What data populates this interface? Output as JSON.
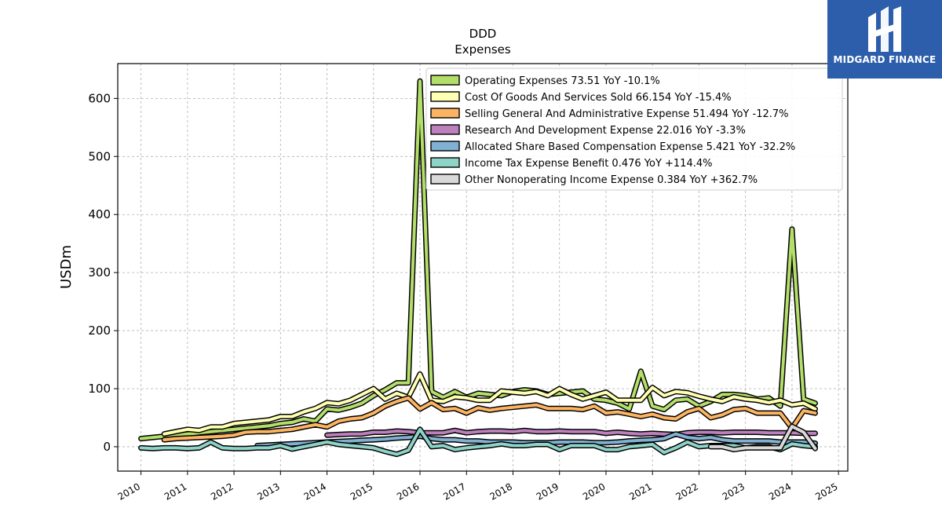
{
  "brand": {
    "name": "MIDGARD FINANCE",
    "background": "#2c5eab"
  },
  "chart_data": {
    "type": "line",
    "title": "DDD",
    "subtitle": "Expenses",
    "ylabel": "USDm",
    "xlabel": "",
    "xlim": [
      2009.5,
      2025.2
    ],
    "ylim": [
      -42,
      660
    ],
    "grid": true,
    "legend_position": "top-right",
    "x_ticks": [
      2010,
      2011,
      2012,
      2013,
      2014,
      2015,
      2016,
      2017,
      2018,
      2019,
      2020,
      2021,
      2022,
      2023,
      2024,
      2025
    ],
    "y_ticks": [
      0,
      100,
      200,
      300,
      400,
      500,
      600
    ],
    "series": [
      {
        "name": "Operating Expenses",
        "legend": "Operating Expenses  73.51 YoY -10.1%",
        "color": "#b3de69",
        "x": [
          2010.0,
          2010.25,
          2010.5,
          2010.75,
          2011.0,
          2011.25,
          2011.5,
          2011.75,
          2012.0,
          2012.25,
          2012.5,
          2012.75,
          2013.0,
          2013.25,
          2013.5,
          2013.75,
          2014.0,
          2014.25,
          2014.5,
          2014.75,
          2015.0,
          2015.25,
          2015.5,
          2015.75,
          2016.0,
          2016.25,
          2016.5,
          2016.75,
          2017.0,
          2017.25,
          2017.5,
          2017.75,
          2018.0,
          2018.25,
          2018.5,
          2018.75,
          2019.0,
          2019.25,
          2019.5,
          2019.75,
          2020.0,
          2020.25,
          2020.5,
          2020.75,
          2021.0,
          2021.25,
          2021.5,
          2021.75,
          2022.0,
          2022.25,
          2022.5,
          2022.75,
          2023.0,
          2023.25,
          2023.5,
          2023.75,
          2024.0,
          2024.25,
          2024.5
        ],
        "y": [
          14,
          16,
          18,
          20,
          22,
          24,
          26,
          28,
          30,
          32,
          34,
          36,
          40,
          42,
          48,
          44,
          65,
          63,
          68,
          75,
          88,
          98,
          110,
          110,
          630,
          95,
          85,
          95,
          85,
          92,
          90,
          88,
          95,
          98,
          96,
          90,
          92,
          94,
          96,
          82,
          80,
          75,
          65,
          130,
          70,
          64,
          80,
          82,
          70,
          78,
          90,
          90,
          88,
          82,
          84,
          70,
          375,
          82,
          75
        ]
      },
      {
        "name": "Cost Of Goods And Services Sold",
        "legend": "Cost Of Goods And Services Sold  66.154 YoY -15.4%",
        "color": "#ffffb3",
        "x": [
          2010.5,
          2010.75,
          2011.0,
          2011.25,
          2011.5,
          2011.75,
          2012.0,
          2012.25,
          2012.5,
          2012.75,
          2013.0,
          2013.25,
          2013.5,
          2013.75,
          2014.0,
          2014.25,
          2014.5,
          2014.75,
          2015.0,
          2015.25,
          2015.5,
          2015.75,
          2016.0,
          2016.25,
          2016.5,
          2016.75,
          2017.0,
          2017.25,
          2017.5,
          2017.75,
          2018.0,
          2018.25,
          2018.5,
          2018.75,
          2019.0,
          2019.25,
          2019.5,
          2019.75,
          2020.0,
          2020.25,
          2020.5,
          2020.75,
          2021.0,
          2021.25,
          2021.5,
          2021.75,
          2022.0,
          2022.25,
          2022.5,
          2022.75,
          2023.0,
          2023.25,
          2023.5,
          2023.75,
          2024.0,
          2024.25,
          2024.5
        ],
        "y": [
          22,
          26,
          30,
          28,
          34,
          34,
          40,
          42,
          44,
          46,
          52,
          52,
          60,
          66,
          76,
          74,
          80,
          90,
          100,
          82,
          92,
          85,
          125,
          80,
          78,
          86,
          84,
          80,
          80,
          96,
          94,
          92,
          95,
          88,
          100,
          90,
          82,
          88,
          94,
          80,
          80,
          80,
          102,
          88,
          95,
          93,
          87,
          82,
          78,
          86,
          82,
          80,
          76,
          80,
          72,
          75,
          65
        ]
      },
      {
        "name": "Selling General And Administrative Expense",
        "legend": "Selling General And Administrative Expense  51.494 YoY -12.7%",
        "color": "#fdb462",
        "x": [
          2010.5,
          2010.75,
          2011.0,
          2011.25,
          2011.5,
          2011.75,
          2012.0,
          2012.25,
          2012.5,
          2012.75,
          2013.0,
          2013.25,
          2013.5,
          2013.75,
          2014.0,
          2014.25,
          2014.5,
          2014.75,
          2015.0,
          2015.25,
          2015.5,
          2015.75,
          2016.0,
          2016.25,
          2016.5,
          2016.75,
          2017.0,
          2017.25,
          2017.5,
          2017.75,
          2018.0,
          2018.25,
          2018.5,
          2018.75,
          2019.0,
          2019.25,
          2019.5,
          2019.75,
          2020.0,
          2020.25,
          2020.5,
          2020.75,
          2021.0,
          2021.25,
          2021.5,
          2021.75,
          2022.0,
          2022.25,
          2022.5,
          2022.75,
          2023.0,
          2023.25,
          2023.5,
          2023.75,
          2024.0,
          2024.25,
          2024.5
        ],
        "y": [
          12,
          14,
          15,
          16,
          17,
          18,
          20,
          25,
          26,
          26,
          28,
          30,
          34,
          38,
          34,
          44,
          48,
          50,
          58,
          70,
          78,
          84,
          65,
          76,
          64,
          66,
          58,
          67,
          63,
          66,
          68,
          70,
          72,
          66,
          66,
          66,
          64,
          70,
          58,
          60,
          56,
          52,
          56,
          50,
          48,
          60,
          66,
          50,
          55,
          64,
          66,
          58,
          58,
          58,
          32,
          62,
          58
        ]
      },
      {
        "name": "Research And Development Expense",
        "legend": "Research And Development Expense  22.016 YoY -3.3%",
        "color": "#bc80bd",
        "x": [
          2014.0,
          2014.25,
          2014.5,
          2014.75,
          2015.0,
          2015.25,
          2015.5,
          2015.75,
          2016.0,
          2016.25,
          2016.5,
          2016.75,
          2017.0,
          2017.25,
          2017.5,
          2017.75,
          2018.0,
          2018.25,
          2018.5,
          2018.75,
          2019.0,
          2019.25,
          2019.5,
          2019.75,
          2020.0,
          2020.25,
          2020.5,
          2020.75,
          2021.0,
          2021.25,
          2021.5,
          2021.75,
          2022.0,
          2022.25,
          2022.5,
          2022.75,
          2023.0,
          2023.25,
          2023.5,
          2023.75,
          2024.0,
          2024.25,
          2024.5
        ],
        "y": [
          20,
          21,
          22,
          22,
          25,
          25,
          27,
          26,
          24,
          24,
          24,
          28,
          24,
          26,
          27,
          27,
          26,
          28,
          26,
          26,
          27,
          26,
          26,
          26,
          23,
          25,
          23,
          22,
          23,
          22,
          21,
          24,
          25,
          25,
          24,
          25,
          25,
          25,
          24,
          24,
          24,
          23,
          23
        ]
      },
      {
        "name": "Allocated Share Based Compensation Expense",
        "legend": "Allocated Share Based Compensation Expense  5.421 YoY -32.2%",
        "color": "#80b1d3",
        "x": [
          2012.5,
          2012.75,
          2013.0,
          2013.25,
          2013.5,
          2013.75,
          2014.0,
          2014.25,
          2014.5,
          2014.75,
          2015.0,
          2015.25,
          2015.5,
          2015.75,
          2016.0,
          2016.25,
          2016.5,
          2016.75,
          2017.0,
          2017.25,
          2017.5,
          2017.75,
          2018.0,
          2018.25,
          2018.5,
          2018.75,
          2019.0,
          2019.25,
          2019.5,
          2019.75,
          2020.0,
          2020.25,
          2020.5,
          2020.75,
          2021.0,
          2021.25,
          2021.5,
          2021.75,
          2022.0,
          2022.25,
          2022.5,
          2022.75,
          2023.0,
          2023.25,
          2023.5,
          2023.75,
          2024.0,
          2024.25,
          2024.5
        ],
        "y": [
          2,
          3,
          4,
          5,
          6,
          7,
          8,
          9,
          10,
          11,
          12,
          13,
          15,
          16,
          18,
          14,
          12,
          12,
          10,
          10,
          8,
          8,
          8,
          7,
          7,
          7,
          8,
          8,
          8,
          7,
          7,
          8,
          10,
          11,
          12,
          14,
          22,
          16,
          14,
          16,
          12,
          10,
          10,
          10,
          10,
          8,
          8,
          8,
          6
        ]
      },
      {
        "name": "Income Tax Expense Benefit",
        "legend": "Income Tax Expense Benefit  0.476 YoY +114.4%",
        "color": "#8dd3c7",
        "x": [
          2010.0,
          2010.25,
          2010.5,
          2010.75,
          2011.0,
          2011.25,
          2011.5,
          2011.75,
          2012.0,
          2012.25,
          2012.5,
          2012.75,
          2013.0,
          2013.25,
          2013.5,
          2013.75,
          2014.0,
          2014.25,
          2014.5,
          2014.75,
          2015.0,
          2015.25,
          2015.5,
          2015.75,
          2016.0,
          2016.25,
          2016.5,
          2016.75,
          2017.0,
          2017.25,
          2017.5,
          2017.75,
          2018.0,
          2018.25,
          2018.5,
          2018.75,
          2019.0,
          2019.25,
          2019.5,
          2019.75,
          2020.0,
          2020.25,
          2020.5,
          2020.75,
          2021.0,
          2021.25,
          2021.5,
          2021.75,
          2022.0,
          2022.25,
          2022.5,
          2022.75,
          2023.0,
          2023.25,
          2023.5,
          2023.75,
          2024.0,
          2024.25,
          2024.5
        ],
        "y": [
          -2,
          -3,
          -2,
          -2,
          -3,
          -2,
          8,
          -2,
          -3,
          -3,
          -2,
          -2,
          2,
          -4,
          0,
          4,
          8,
          4,
          2,
          0,
          -2,
          -8,
          -13,
          -6,
          30,
          0,
          2,
          -5,
          -2,
          0,
          2,
          5,
          2,
          2,
          4,
          4,
          -5,
          2,
          2,
          2,
          -5,
          -5,
          0,
          2,
          4,
          -10,
          -2,
          8,
          0,
          2,
          2,
          2,
          -2,
          0,
          0,
          -5,
          5,
          2,
          0
        ]
      },
      {
        "name": "Other Nonoperating Income Expense",
        "legend": "Other Nonoperating Income Expense  0.384 YoY +362.7%",
        "color": "#d9d9d9",
        "x": [
          2022.25,
          2022.5,
          2022.75,
          2023.0,
          2023.25,
          2023.5,
          2023.75,
          2024.0,
          2024.25,
          2024.5
        ],
        "y": [
          0,
          0,
          -5,
          -2,
          -2,
          -2,
          -2,
          35,
          25,
          -3
        ]
      }
    ]
  }
}
